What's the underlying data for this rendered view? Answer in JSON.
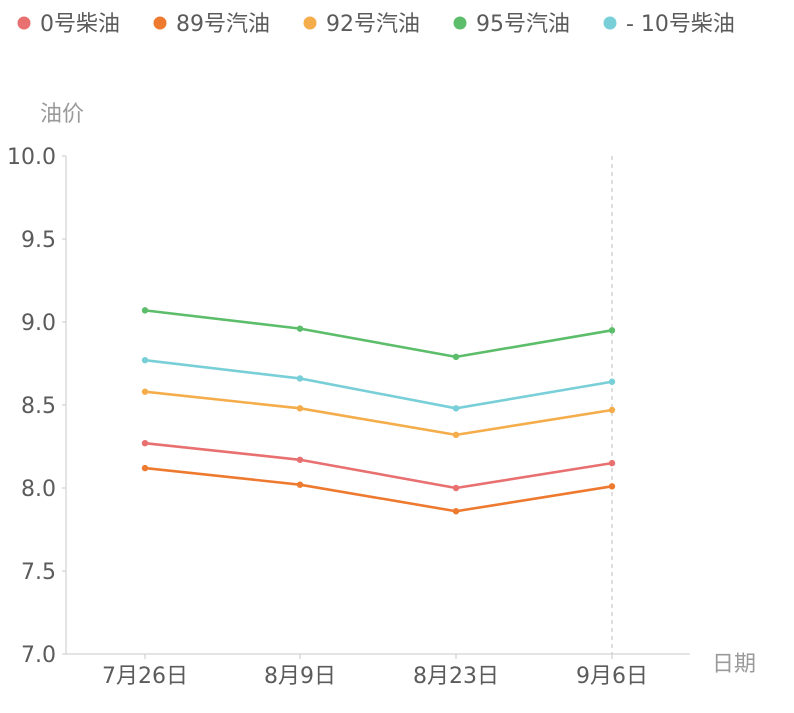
{
  "chart_data": {
    "type": "line",
    "categories": [
      "7月26日",
      "8月9日",
      "8月23日",
      "9月6日"
    ],
    "series": [
      {
        "name": "0号柴油",
        "color": "#e87070",
        "values": [
          8.27,
          8.17,
          8.0,
          8.15
        ]
      },
      {
        "name": "89号汽油",
        "color": "#ee7a30",
        "values": [
          8.12,
          8.02,
          7.86,
          8.01
        ]
      },
      {
        "name": "92号汽油",
        "color": "#f4ad4a",
        "values": [
          8.58,
          8.48,
          8.32,
          8.47
        ]
      },
      {
        "name": "95号汽油",
        "color": "#5cbd6a",
        "values": [
          9.07,
          8.96,
          8.79,
          8.95
        ]
      },
      {
        "name": "- 10号柴油",
        "color": "#79cfd8",
        "values": [
          8.77,
          8.66,
          8.48,
          8.64
        ]
      }
    ],
    "xlabel": "日期",
    "ylabel": "油价",
    "ylim": [
      7.0,
      10.0
    ],
    "yticks": [
      "7.0",
      "7.5",
      "8.0",
      "8.5",
      "9.0",
      "9.5",
      "10.0"
    ],
    "grid": false,
    "legend_position": "top",
    "highlight_category": "9月6日"
  }
}
